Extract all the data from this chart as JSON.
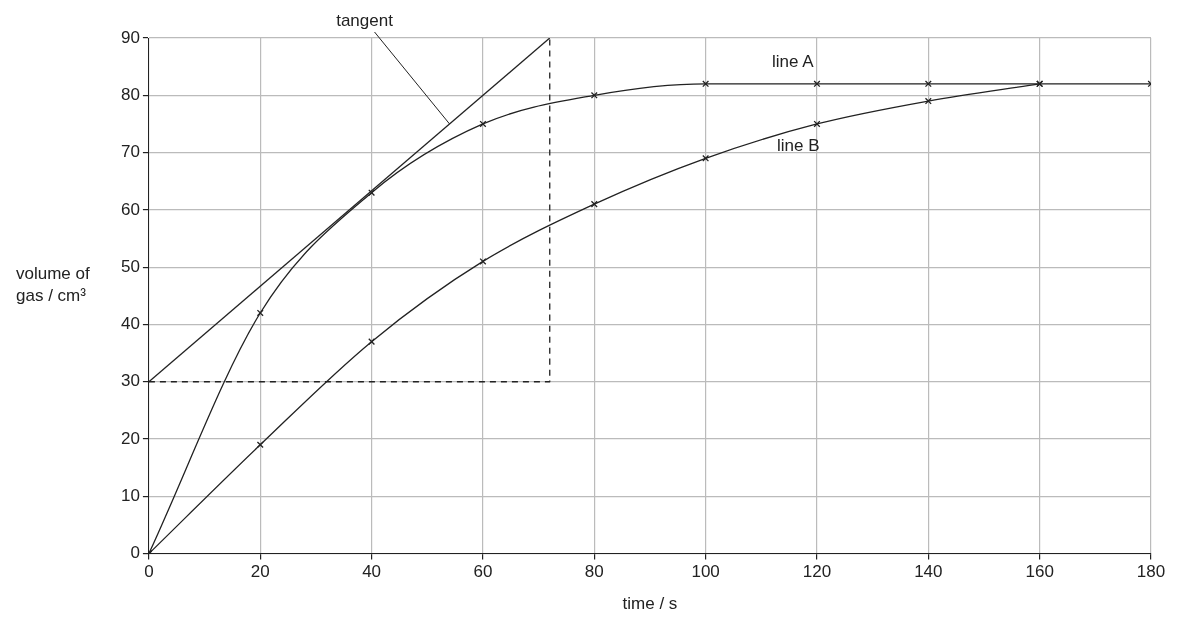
{
  "chart_data": {
    "type": "line",
    "xlabel": "time / s",
    "ylabel": "volume of gas / cm³",
    "xlim": [
      0,
      180
    ],
    "ylim": [
      0,
      90
    ],
    "xticks": [
      0,
      20,
      40,
      60,
      80,
      100,
      120,
      140,
      160,
      180
    ],
    "yticks": [
      0,
      10,
      20,
      30,
      40,
      50,
      60,
      70,
      80,
      90
    ],
    "grid": true,
    "legend": false,
    "marker": "cross",
    "line_style": "solid",
    "series": [
      {
        "name": "line A",
        "color": "#222222",
        "x": [
          0,
          20,
          40,
          60,
          80,
          100,
          120,
          140,
          160,
          180
        ],
        "values": [
          0,
          42,
          63,
          75,
          80,
          82,
          82,
          82,
          82,
          82
        ]
      },
      {
        "name": "line B",
        "color": "#222222",
        "x": [
          0,
          20,
          40,
          60,
          80,
          100,
          120,
          140,
          160
        ],
        "values": [
          0,
          19,
          37,
          51,
          61,
          69,
          75,
          79,
          82
        ]
      },
      {
        "color": "#222222",
        "x": [
          0,
          72
        ],
        "values": [
          30,
          90
        ],
        "marker": "none"
      },
      {
        "color": "#222222",
        "x": [
          0,
          72,
          72
        ],
        "values": [
          30,
          30,
          90
        ],
        "marker": "none",
        "line_style": "dashed"
      }
    ],
    "annotations": [
      {
        "text": "tangent",
        "x": 54,
        "y": 75
      }
    ]
  }
}
